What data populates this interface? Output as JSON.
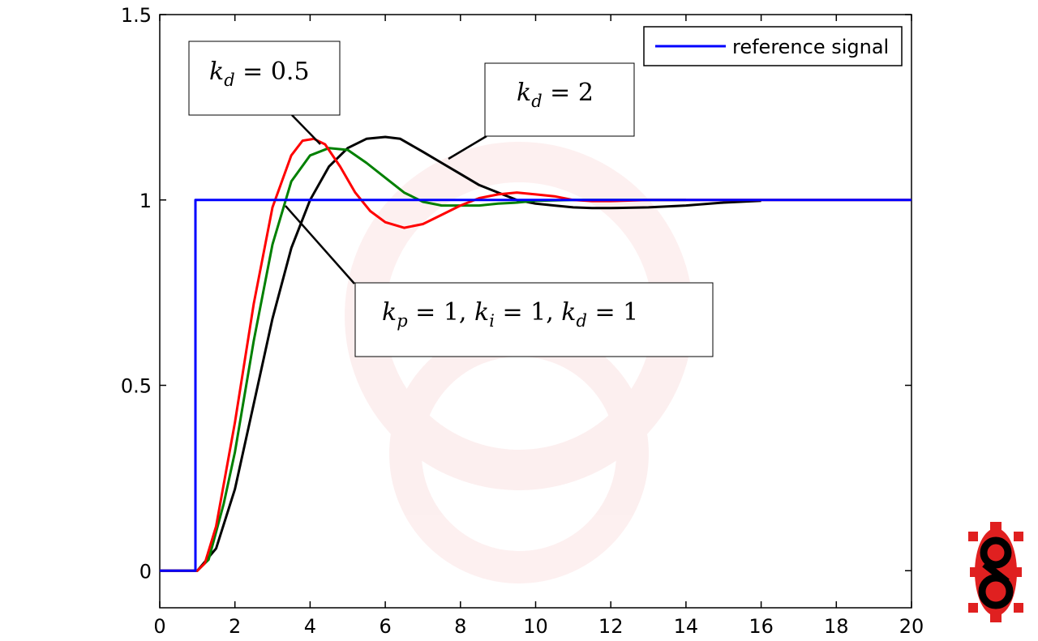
{
  "chart_data": {
    "type": "line",
    "title": "",
    "xlabel": "",
    "ylabel": "",
    "xlim": [
      0,
      20
    ],
    "ylim": [
      -0.1,
      1.5
    ],
    "x_ticks": [
      0,
      2,
      4,
      6,
      8,
      10,
      12,
      14,
      16,
      18,
      20
    ],
    "y_ticks": [
      0,
      0.5,
      1,
      1.5
    ],
    "x_tick_labels": [
      "0",
      "2",
      "4",
      "6",
      "8",
      "10",
      "12",
      "14",
      "16",
      "18",
      "20"
    ],
    "y_tick_labels": [
      "0",
      "0.5",
      "1",
      "1.5"
    ],
    "grid": false,
    "legend": {
      "placement": "top-right",
      "entries": [
        "reference signal"
      ]
    },
    "series": [
      {
        "name": "reference signal",
        "color": "#0000ff",
        "x": [
          0,
          0.95,
          0.95,
          20
        ],
        "y": [
          0,
          0,
          1,
          1
        ]
      },
      {
        "color": "#ff0000",
        "x": [
          0,
          1.0,
          1.2,
          1.5,
          2.0,
          2.5,
          3.0,
          3.5,
          3.8,
          4.1,
          4.4,
          4.8,
          5.2,
          5.6,
          6.0,
          6.5,
          7.0,
          7.5,
          8.0,
          8.5,
          9.0,
          9.5,
          10.0,
          10.5,
          11.0,
          11.5,
          12.0,
          13.0,
          14.0,
          16.0,
          20.0
        ],
        "y": [
          0,
          0,
          0.02,
          0.12,
          0.4,
          0.72,
          0.98,
          1.12,
          1.16,
          1.165,
          1.15,
          1.09,
          1.02,
          0.97,
          0.94,
          0.925,
          0.935,
          0.96,
          0.985,
          1.005,
          1.015,
          1.02,
          1.015,
          1.01,
          1.0,
          0.997,
          0.997,
          1.0,
          1.0,
          1.0,
          1.0
        ]
      },
      {
        "color": "#008000",
        "x": [
          0,
          1.0,
          1.3,
          1.7,
          2.0,
          2.5,
          3.0,
          3.5,
          4.0,
          4.5,
          5.0,
          5.5,
          6.0,
          6.5,
          7.0,
          7.5,
          8.0,
          8.5,
          9.0,
          9.5,
          10.0,
          11.0,
          12.0,
          13.0,
          14.0
        ],
        "y": [
          0,
          0,
          0.03,
          0.18,
          0.32,
          0.62,
          0.88,
          1.05,
          1.12,
          1.14,
          1.135,
          1.1,
          1.06,
          1.02,
          0.995,
          0.985,
          0.985,
          0.985,
          0.99,
          0.993,
          0.998,
          1.0,
          1.0,
          1.0,
          1.0
        ]
      },
      {
        "color": "#000000",
        "x": [
          0,
          1.0,
          1.5,
          2.0,
          2.5,
          3.0,
          3.5,
          4.0,
          4.5,
          5.0,
          5.5,
          6.0,
          6.4,
          7.0,
          7.5,
          8.0,
          8.5,
          9.0,
          9.5,
          10.0,
          10.5,
          11.0,
          11.5,
          12.0,
          13.0,
          14.0,
          15.0,
          16.0
        ],
        "y": [
          0,
          0,
          0.06,
          0.22,
          0.45,
          0.68,
          0.87,
          1.0,
          1.09,
          1.14,
          1.165,
          1.17,
          1.165,
          1.13,
          1.1,
          1.07,
          1.04,
          1.02,
          1.0,
          0.99,
          0.985,
          0.98,
          0.978,
          0.978,
          0.98,
          0.985,
          0.993,
          0.998
        ]
      }
    ],
    "annotations": [
      {
        "text": "k_d = 0.5",
        "target_series": 1
      },
      {
        "text": "k_d = 2",
        "target_series": 3
      },
      {
        "text": "k_p = 1,  k_i = 1,  k_d = 1",
        "target_series": 2
      }
    ]
  },
  "annotations_display": {
    "kd05": {
      "base": "k",
      "sub": "d",
      "rest": " = 0.5"
    },
    "kd2": {
      "base": "k",
      "sub": "d",
      "rest": " = 2"
    },
    "kd1_kp": {
      "base": "k",
      "sub": "p",
      "rest": " = 1,  "
    },
    "kd1_ki": {
      "base": "k",
      "sub": "i",
      "rest": " = 1,  "
    },
    "kd1_kd": {
      "base": "k",
      "sub": "d",
      "rest": " = 1"
    }
  },
  "logo": {
    "name": "gear-eight-logo",
    "colors": {
      "gear": "#e02020",
      "mark": "#000000"
    }
  }
}
